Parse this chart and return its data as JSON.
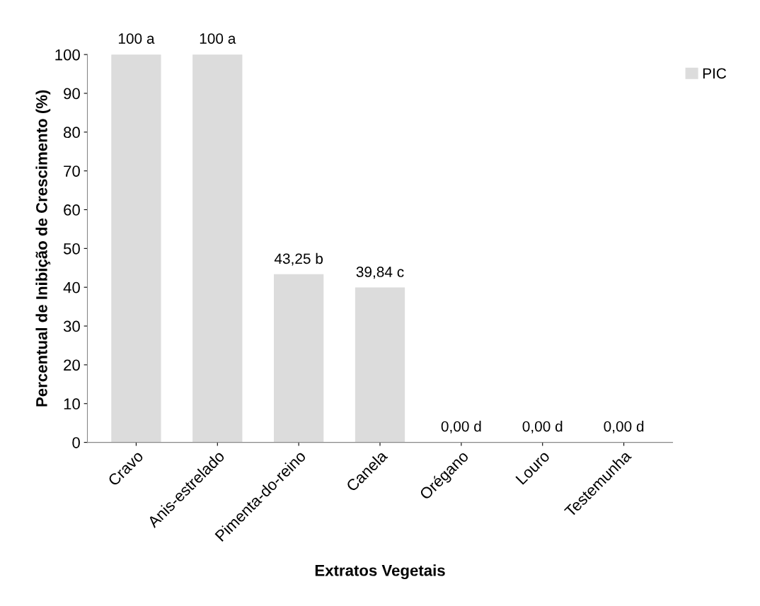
{
  "chart_data": {
    "type": "bar",
    "xlabel": "Extratos Vegetais",
    "ylabel": "Percentual de Inibição de Crescimento (%)",
    "categories": [
      "Cravo",
      "Anis-estrelado",
      "Pimenta-do-reino",
      "Canela",
      "Orégano",
      "Louro",
      "Testemunha"
    ],
    "series": [
      {
        "name": "PIC",
        "color": "#dcdcdc",
        "values": [
          100,
          100,
          43.25,
          39.84,
          0,
          0,
          0
        ],
        "value_labels": [
          "100 a",
          "100 a",
          "43,25 b",
          "39,84 c",
          "0,00 d",
          "0,00 d",
          "0,00 d"
        ]
      }
    ],
    "ylim": [
      0,
      100
    ],
    "yticks": [
      0,
      10,
      20,
      30,
      40,
      50,
      60,
      70,
      80,
      90,
      100
    ],
    "grid": false,
    "legend": "top right"
  }
}
